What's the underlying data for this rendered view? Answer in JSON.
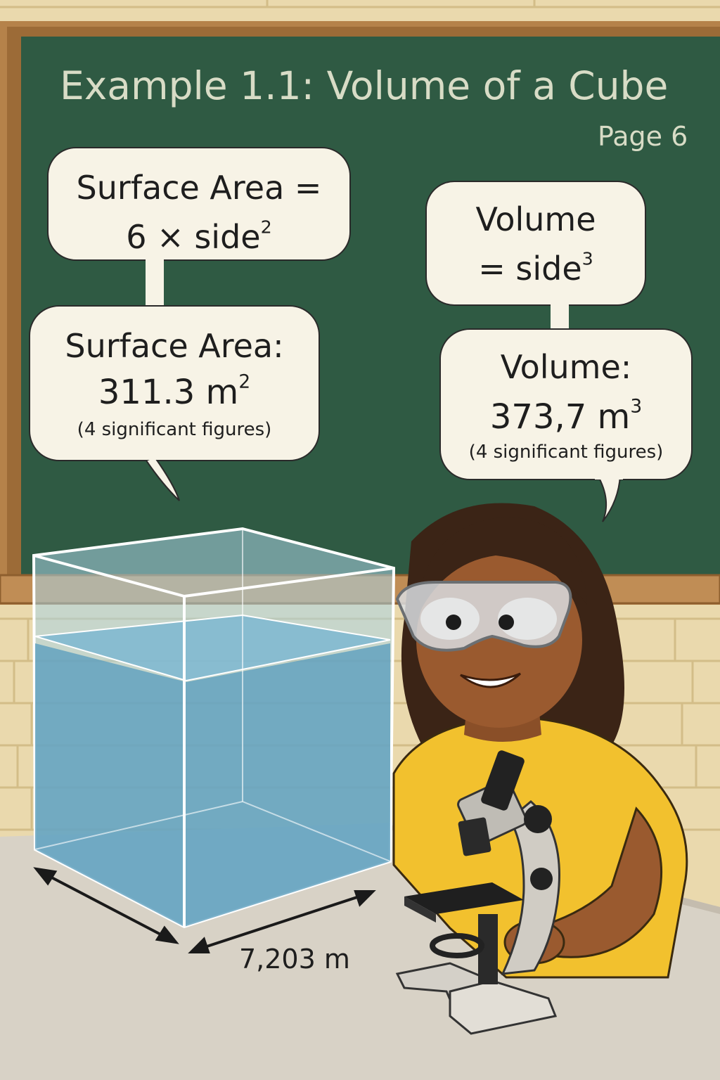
{
  "board": {
    "title": "Example 1.1: Volume of a Cube",
    "page": "Page 6"
  },
  "bubbles": {
    "sa_formula": {
      "line1": "Surface Area =",
      "line2_base": "6 × side",
      "line2_exp": "2"
    },
    "sa_result": {
      "line1": "Surface Area:",
      "value_base": "311.3 m",
      "value_exp": "2",
      "note": "(4 significant figures)"
    },
    "vol_formula": {
      "line1": "Volume",
      "line2_base": "= side",
      "line2_exp": "3"
    },
    "vol_result": {
      "line1": "Volume:",
      "value_base": "373,7 m",
      "value_exp": "3",
      "note": "(4 significant figures)"
    }
  },
  "dimension": {
    "label": "7,203 m"
  },
  "colors": {
    "board": "#2f5a43",
    "frame": "#b5824a",
    "wall": "#ead9ad",
    "water": "#6fb0cc",
    "shirt": "#f2c12e",
    "skin": "#9a5a2f",
    "hair": "#3b2416",
    "desk": "#d8d2c6"
  },
  "icons": {
    "subject": "student-with-goggles",
    "instrument": "microscope-icon"
  }
}
